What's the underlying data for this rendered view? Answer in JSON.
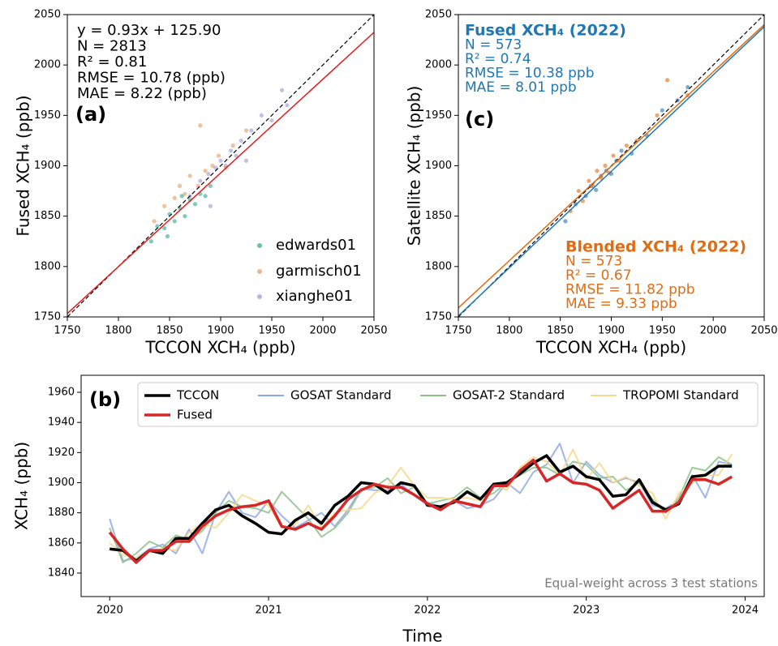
{
  "chart_data": [
    {
      "type": "scatter",
      "panel_label": "(a)",
      "xlabel": "TCCON XCH₄ (ppb)",
      "ylabel": "Fused XCH₄ (ppb)",
      "xlim": [
        1750,
        2050
      ],
      "ylim": [
        1750,
        2050
      ],
      "xticks": [
        1750,
        1800,
        1850,
        1900,
        1950,
        2000,
        2050
      ],
      "yticks": [
        1750,
        1800,
        1850,
        1900,
        1950,
        2000,
        2050
      ],
      "identity_line": true,
      "fit_lines": [
        {
          "color": "#e41a1c",
          "x": [
            1750,
            2050
          ],
          "y": [
            1753.4,
            2032.4
          ]
        }
      ],
      "series": [
        {
          "name": "edwards01",
          "color": "#2ca58d",
          "x": [
            1832,
            1838,
            1845,
            1850,
            1855,
            1860,
            1865,
            1870,
            1875,
            1880,
            1885,
            1890,
            1848,
            1862
          ],
          "values": [
            1825,
            1840,
            1838,
            1852,
            1845,
            1858,
            1850,
            1866,
            1862,
            1872,
            1870,
            1880,
            1830,
            1870
          ]
        },
        {
          "name": "garmisch01",
          "color": "#e8965a",
          "x": [
            1835,
            1845,
            1855,
            1865,
            1870,
            1878,
            1885,
            1892,
            1898,
            1905,
            1912,
            1925,
            1860,
            1880
          ],
          "values": [
            1845,
            1860,
            1868,
            1872,
            1890,
            1880,
            1895,
            1900,
            1910,
            1898,
            1920,
            1935,
            1880,
            1940
          ]
        },
        {
          "name": "xianghe01",
          "color": "#9b97cc",
          "x": [
            1870,
            1880,
            1888,
            1895,
            1900,
            1905,
            1910,
            1915,
            1920,
            1930,
            1940,
            1950,
            1960,
            1965,
            1890,
            1925
          ],
          "values": [
            1870,
            1885,
            1892,
            1898,
            1905,
            1900,
            1915,
            1910,
            1925,
            1935,
            1950,
            1945,
            1975,
            1960,
            1860,
            1905
          ]
        }
      ],
      "annotations": [
        {
          "color": "#000000",
          "lines": [
            "y = 0.93x + 125.90",
            "N = 2813",
            "R² = 0.81",
            "RMSE = 10.78 (ppb)",
            "MAE = 8.22 (ppb)"
          ]
        }
      ],
      "legend": "lower right"
    },
    {
      "type": "scatter",
      "panel_label": "(c)",
      "xlabel": "TCCON XCH₄ (ppb)",
      "ylabel": "Satellite XCH₄ (ppb)",
      "xlim": [
        1750,
        2050
      ],
      "ylim": [
        1750,
        2050
      ],
      "xticks": [
        1750,
        1800,
        1850,
        1900,
        1950,
        2000,
        2050
      ],
      "yticks": [
        1750,
        1800,
        1850,
        1900,
        1950,
        2000,
        2050
      ],
      "identity_line": true,
      "fit_lines": [
        {
          "color": "#1f77b4",
          "x": [
            1750,
            2050
          ],
          "y": [
            1751,
            2038
          ]
        },
        {
          "color": "#e06c12",
          "x": [
            1750,
            2050
          ],
          "y": [
            1759,
            2040
          ]
        }
      ],
      "series": [
        {
          "color": "#1f77b4",
          "x": [
            1855,
            1865,
            1875,
            1880,
            1885,
            1890,
            1895,
            1900,
            1905,
            1910,
            1920,
            1935,
            1950,
            1965,
            1975
          ],
          "values": [
            1845,
            1862,
            1870,
            1880,
            1876,
            1890,
            1895,
            1892,
            1905,
            1915,
            1912,
            1930,
            1955,
            1965,
            1978
          ]
        },
        {
          "color": "#e06c12",
          "x": [
            1860,
            1868,
            1872,
            1878,
            1882,
            1886,
            1890,
            1894,
            1898,
            1902,
            1908,
            1915,
            1925,
            1945,
            1955,
            1975
          ],
          "values": [
            1855,
            1875,
            1865,
            1885,
            1880,
            1895,
            1888,
            1900,
            1893,
            1910,
            1905,
            1920,
            1925,
            1950,
            1985,
            1970
          ]
        }
      ],
      "annotations": [
        {
          "color": "#1f77b4",
          "title": "Fused XCH₄ (2022)",
          "lines": [
            "N = 573",
            "R² = 0.74",
            "RMSE = 10.38 ppb",
            "MAE = 8.01 ppb"
          ]
        },
        {
          "color": "#e06c12",
          "title": "Blended XCH₄ (2022)",
          "lines": [
            "N = 573",
            "R² = 0.67",
            "RMSE = 11.82 ppb",
            "MAE = 9.33 ppb"
          ]
        }
      ]
    },
    {
      "type": "line",
      "panel_label": "(b)",
      "xlabel": "Time",
      "ylabel": "XCH₄ (ppb)",
      "xlim": [
        2019.82,
        2024.12
      ],
      "ylim": [
        1824.4,
        1971.3
      ],
      "xticks": [
        2020,
        2021,
        2022,
        2023,
        2024
      ],
      "yticks": [
        1840,
        1860,
        1880,
        1900,
        1920,
        1940,
        1960
      ],
      "x": [
        2020.0,
        2020.083,
        2020.167,
        2020.25,
        2020.333,
        2020.417,
        2020.5,
        2020.583,
        2020.667,
        2020.75,
        2020.833,
        2020.917,
        2021.0,
        2021.083,
        2021.167,
        2021.25,
        2021.333,
        2021.417,
        2021.5,
        2021.583,
        2021.667,
        2021.75,
        2021.833,
        2021.917,
        2022.0,
        2022.083,
        2022.167,
        2022.25,
        2022.333,
        2022.417,
        2022.5,
        2022.583,
        2022.667,
        2022.75,
        2022.833,
        2022.917,
        2023.0,
        2023.083,
        2023.167,
        2023.25,
        2023.333,
        2023.417,
        2023.5,
        2023.583,
        2023.667,
        2023.75,
        2023.833,
        2023.917
      ],
      "series": [
        {
          "name": "TCCON",
          "color": "#000000",
          "values": [
            1856,
            1855,
            1848,
            1855,
            1853,
            1863,
            1863,
            1873,
            1882,
            1885,
            1878,
            1873,
            1867,
            1866,
            1875,
            1880,
            1873,
            1885,
            1891,
            1900,
            1899,
            1893,
            1900,
            1898,
            1885,
            1884,
            1887,
            1894,
            1889,
            1899,
            1900,
            1906,
            1913,
            1918,
            1907,
            1911,
            1904,
            1902,
            1891,
            1892,
            1902,
            1887,
            1882,
            1886,
            1904,
            1905,
            1911,
            1911
          ]
        },
        {
          "name": "GOSAT Standard",
          "color": "#8fa8e6",
          "values": [
            1876,
            1848,
            1850,
            1856,
            1859,
            1853,
            1869,
            1853,
            1880,
            1894,
            1880,
            1877,
            1888,
            1878,
            1870,
            1875,
            1880,
            1871,
            1882,
            1896,
            1895,
            1895,
            1899,
            1892,
            1887,
            1884,
            1888,
            1883,
            1885,
            1889,
            1900,
            1893,
            1907,
            1912,
            1926,
            1900,
            1914,
            1905,
            1900,
            1903,
            1900,
            1885,
            1883,
            1888,
            1905,
            1890,
            1914,
            1912
          ]
        },
        {
          "name": "GOSAT-2 Standard",
          "color": "#8cc28a",
          "values": [
            1870,
            1847,
            1853,
            1861,
            1857,
            1865,
            1862,
            1868,
            1880,
            1888,
            1884,
            1883,
            1880,
            1894,
            1885,
            1876,
            1864,
            1870,
            1880,
            1895,
            1897,
            1903,
            1893,
            1897,
            1886,
            1888,
            1890,
            1897,
            1890,
            1893,
            1900,
            1905,
            1910,
            1910,
            1905,
            1914,
            1912,
            1903,
            1904,
            1895,
            1900,
            1889,
            1880,
            1890,
            1910,
            1908,
            1917,
            1912
          ]
        },
        {
          "name": "TROPOMI Standard",
          "color": "#f5d98a",
          "values": [
            1860,
            1852,
            1850,
            1855,
            1856,
            1855,
            1867,
            1873,
            1870,
            1880,
            1892,
            1888,
            1885,
            1870,
            1872,
            1885,
            1870,
            1880,
            1882,
            1883,
            1893,
            1898,
            1910,
            1898,
            1890,
            1890,
            1889,
            1890,
            1888,
            1899,
            1895,
            1910,
            1917,
            1914,
            1905,
            1922,
            1902,
            1913,
            1900,
            1904,
            1898,
            1893,
            1876,
            1893,
            1900,
            1905,
            1905,
            1919
          ]
        },
        {
          "name": "Fused",
          "color": "#d62728",
          "values": [
            1867,
            1856,
            1847,
            1855,
            1855,
            1861,
            1861,
            1871,
            1878,
            1882,
            1884,
            1885,
            1888,
            1871,
            1869,
            1873,
            1869,
            1878,
            1889,
            1895,
            1899,
            1897,
            1897,
            1892,
            1886,
            1882,
            1888,
            1886,
            1884,
            1898,
            1898,
            1908,
            1915,
            1901,
            1906,
            1900,
            1899,
            1895,
            1883,
            1889,
            1895,
            1881,
            1881,
            1887,
            1902,
            1902,
            1899,
            1904
          ]
        }
      ],
      "note": "Equal-weight across 3 test stations",
      "legend": "upper right"
    }
  ]
}
